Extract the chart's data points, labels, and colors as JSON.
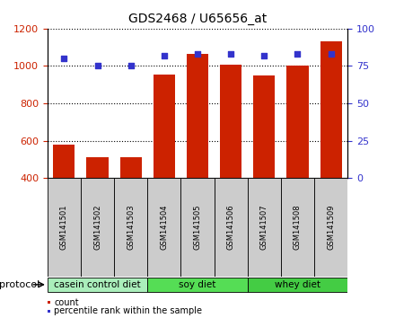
{
  "title": "GDS2468 / U65656_at",
  "samples": [
    "GSM141501",
    "GSM141502",
    "GSM141503",
    "GSM141504",
    "GSM141505",
    "GSM141506",
    "GSM141507",
    "GSM141508",
    "GSM141509"
  ],
  "counts": [
    578,
    510,
    513,
    955,
    1065,
    1005,
    950,
    1000,
    1130
  ],
  "percentile_ranks": [
    80,
    75,
    75,
    82,
    83,
    83,
    82,
    83,
    83
  ],
  "ylim_left": [
    400,
    1200
  ],
  "ylim_right": [
    0,
    100
  ],
  "yticks_left": [
    400,
    600,
    800,
    1000,
    1200
  ],
  "yticks_right": [
    0,
    25,
    50,
    75,
    100
  ],
  "bar_color": "#cc2200",
  "dot_color": "#3333cc",
  "background_plot": "#ffffff",
  "protocol_groups": [
    {
      "label": "casein control diet",
      "start": 0,
      "end": 3,
      "color": "#aaeebb"
    },
    {
      "label": "soy diet",
      "start": 3,
      "end": 6,
      "color": "#55dd55"
    },
    {
      "label": "whey diet",
      "start": 6,
      "end": 9,
      "color": "#55dd55"
    }
  ],
  "tick_label_color_left": "#cc2200",
  "tick_label_color_right": "#3333cc",
  "xlabel_bg": "#cccccc",
  "protocol_label": "protocol",
  "legend_count_label": "count",
  "legend_pct_label": "percentile rank within the sample"
}
